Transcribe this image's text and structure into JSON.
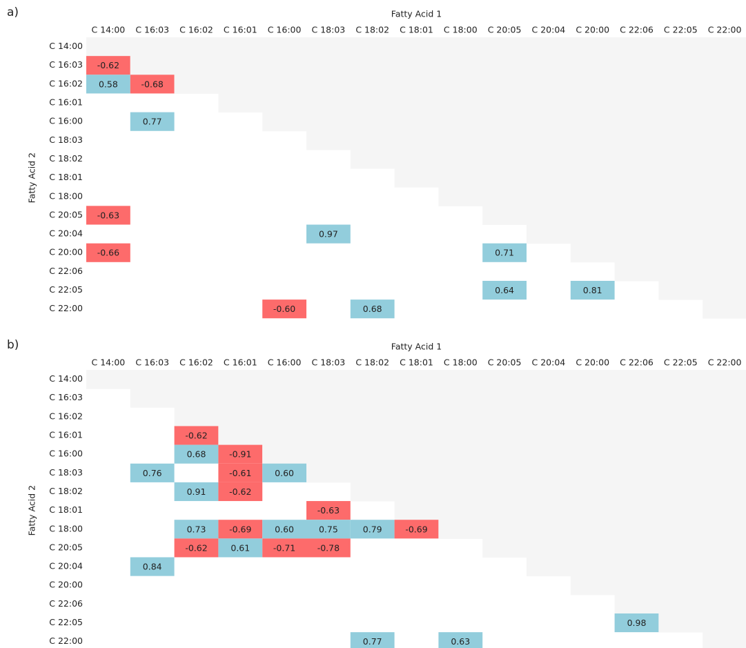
{
  "chart_data": [
    {
      "type": "heatmap",
      "panel_label": "a)",
      "x_label": "Fatty Acid 1",
      "y_label": "Fatty Acid 2",
      "x_categories": [
        "C 14:00",
        "C 16:03",
        "C 16:02",
        "C 16:01",
        "C 16:00",
        "C 18:03",
        "C 18:02",
        "C 18:01",
        "C 18:00",
        "C 20:05",
        "C 20:04",
        "C 20:00",
        "C 22:06",
        "C 22:05",
        "C 22:00"
      ],
      "y_categories": [
        "C 14:00",
        "C 16:03",
        "C 16:02",
        "C 16:01",
        "C 16:00",
        "C 18:03",
        "C 18:02",
        "C 18:01",
        "C 18:00",
        "C 20:05",
        "C 20:04",
        "C 20:00",
        "C 22:06",
        "C 22:05",
        "C 22:00"
      ],
      "color_positive": "#92cddc",
      "color_negative": "#fd6b6b",
      "color_upper": "#f5f5f5",
      "values": [
        [
          null,
          null,
          null,
          null,
          null,
          null,
          null,
          null,
          null,
          null,
          null,
          null,
          null,
          null,
          null
        ],
        [
          -0.62,
          null,
          null,
          null,
          null,
          null,
          null,
          null,
          null,
          null,
          null,
          null,
          null,
          null,
          null
        ],
        [
          0.58,
          -0.68,
          null,
          null,
          null,
          null,
          null,
          null,
          null,
          null,
          null,
          null,
          null,
          null,
          null
        ],
        [
          null,
          null,
          null,
          null,
          null,
          null,
          null,
          null,
          null,
          null,
          null,
          null,
          null,
          null,
          null
        ],
        [
          null,
          0.77,
          null,
          null,
          null,
          null,
          null,
          null,
          null,
          null,
          null,
          null,
          null,
          null,
          null
        ],
        [
          null,
          null,
          null,
          null,
          null,
          null,
          null,
          null,
          null,
          null,
          null,
          null,
          null,
          null,
          null
        ],
        [
          null,
          null,
          null,
          null,
          null,
          null,
          null,
          null,
          null,
          null,
          null,
          null,
          null,
          null,
          null
        ],
        [
          null,
          null,
          null,
          null,
          null,
          null,
          null,
          null,
          null,
          null,
          null,
          null,
          null,
          null,
          null
        ],
        [
          null,
          null,
          null,
          null,
          null,
          null,
          null,
          null,
          null,
          null,
          null,
          null,
          null,
          null,
          null
        ],
        [
          -0.63,
          null,
          null,
          null,
          null,
          null,
          null,
          null,
          null,
          null,
          null,
          null,
          null,
          null,
          null
        ],
        [
          null,
          null,
          null,
          null,
          null,
          0.97,
          null,
          null,
          null,
          null,
          null,
          null,
          null,
          null,
          null
        ],
        [
          -0.66,
          null,
          null,
          null,
          null,
          null,
          null,
          null,
          null,
          0.71,
          null,
          null,
          null,
          null,
          null
        ],
        [
          null,
          null,
          null,
          null,
          null,
          null,
          null,
          null,
          null,
          null,
          null,
          null,
          null,
          null,
          null
        ],
        [
          null,
          null,
          null,
          null,
          null,
          null,
          null,
          null,
          null,
          0.64,
          null,
          0.81,
          null,
          null,
          null
        ],
        [
          null,
          null,
          null,
          null,
          -0.6,
          null,
          0.68,
          null,
          null,
          null,
          null,
          null,
          null,
          null,
          null
        ]
      ],
      "value_labels": [
        [
          null,
          null,
          null,
          null,
          null,
          null,
          null,
          null,
          null,
          null,
          null,
          null,
          null,
          null,
          null
        ],
        [
          "-0.62",
          null,
          null,
          null,
          null,
          null,
          null,
          null,
          null,
          null,
          null,
          null,
          null,
          null,
          null
        ],
        [
          "0.58",
          "-0.68",
          null,
          null,
          null,
          null,
          null,
          null,
          null,
          null,
          null,
          null,
          null,
          null,
          null
        ],
        [
          null,
          null,
          null,
          null,
          null,
          null,
          null,
          null,
          null,
          null,
          null,
          null,
          null,
          null,
          null
        ],
        [
          null,
          "0.77",
          null,
          null,
          null,
          null,
          null,
          null,
          null,
          null,
          null,
          null,
          null,
          null,
          null
        ],
        [
          null,
          null,
          null,
          null,
          null,
          null,
          null,
          null,
          null,
          null,
          null,
          null,
          null,
          null,
          null
        ],
        [
          null,
          null,
          null,
          null,
          null,
          null,
          null,
          null,
          null,
          null,
          null,
          null,
          null,
          null,
          null
        ],
        [
          null,
          null,
          null,
          null,
          null,
          null,
          null,
          null,
          null,
          null,
          null,
          null,
          null,
          null,
          null
        ],
        [
          null,
          null,
          null,
          null,
          null,
          null,
          null,
          null,
          null,
          null,
          null,
          null,
          null,
          null,
          null
        ],
        [
          "-0.63",
          null,
          null,
          null,
          null,
          null,
          null,
          null,
          null,
          null,
          null,
          null,
          null,
          null,
          null
        ],
        [
          null,
          null,
          null,
          null,
          null,
          "0.97",
          null,
          null,
          null,
          null,
          null,
          null,
          null,
          null,
          null
        ],
        [
          "-0.66",
          null,
          null,
          null,
          null,
          null,
          null,
          null,
          null,
          "0.71",
          null,
          null,
          null,
          null,
          null
        ],
        [
          null,
          null,
          null,
          null,
          null,
          null,
          null,
          null,
          null,
          null,
          null,
          null,
          null,
          null,
          null
        ],
        [
          null,
          null,
          null,
          null,
          null,
          null,
          null,
          null,
          null,
          "0.64",
          null,
          "0.81",
          null,
          null,
          null
        ],
        [
          null,
          null,
          null,
          null,
          "-0.60",
          null,
          "0.68",
          null,
          null,
          null,
          null,
          null,
          null,
          null,
          null
        ]
      ]
    },
    {
      "type": "heatmap",
      "panel_label": "b)",
      "x_label": "Fatty Acid 1",
      "y_label": "Fatty Acid 2",
      "x_categories": [
        "C 14:00",
        "C 16:03",
        "C 16:02",
        "C 16:01",
        "C 16:00",
        "C 18:03",
        "C 18:02",
        "C 18:01",
        "C 18:00",
        "C 20:05",
        "C 20:04",
        "C 20:00",
        "C 22:06",
        "C 22:05",
        "C 22:00"
      ],
      "y_categories": [
        "C 14:00",
        "C 16:03",
        "C 16:02",
        "C 16:01",
        "C 16:00",
        "C 18:03",
        "C 18:02",
        "C 18:01",
        "C 18:00",
        "C 20:05",
        "C 20:04",
        "C 20:00",
        "C 22:06",
        "C 22:05",
        "C 22:00"
      ],
      "color_positive": "#92cddc",
      "color_negative": "#fd6b6b",
      "color_upper": "#f5f5f5",
      "values": [
        [
          null,
          null,
          null,
          null,
          null,
          null,
          null,
          null,
          null,
          null,
          null,
          null,
          null,
          null,
          null
        ],
        [
          null,
          null,
          null,
          null,
          null,
          null,
          null,
          null,
          null,
          null,
          null,
          null,
          null,
          null,
          null
        ],
        [
          null,
          null,
          null,
          null,
          null,
          null,
          null,
          null,
          null,
          null,
          null,
          null,
          null,
          null,
          null
        ],
        [
          null,
          null,
          -0.62,
          null,
          null,
          null,
          null,
          null,
          null,
          null,
          null,
          null,
          null,
          null,
          null
        ],
        [
          null,
          null,
          0.68,
          -0.91,
          null,
          null,
          null,
          null,
          null,
          null,
          null,
          null,
          null,
          null,
          null
        ],
        [
          null,
          0.76,
          null,
          -0.61,
          0.6,
          null,
          null,
          null,
          null,
          null,
          null,
          null,
          null,
          null,
          null
        ],
        [
          null,
          null,
          0.91,
          -0.62,
          null,
          null,
          null,
          null,
          null,
          null,
          null,
          null,
          null,
          null,
          null
        ],
        [
          null,
          null,
          null,
          null,
          null,
          -0.63,
          null,
          null,
          null,
          null,
          null,
          null,
          null,
          null,
          null
        ],
        [
          null,
          null,
          0.73,
          -0.69,
          0.6,
          0.75,
          0.79,
          -0.69,
          null,
          null,
          null,
          null,
          null,
          null,
          null
        ],
        [
          null,
          null,
          -0.62,
          0.61,
          -0.71,
          -0.78,
          null,
          null,
          null,
          null,
          null,
          null,
          null,
          null,
          null
        ],
        [
          null,
          0.84,
          null,
          null,
          null,
          null,
          null,
          null,
          null,
          null,
          null,
          null,
          null,
          null,
          null
        ],
        [
          null,
          null,
          null,
          null,
          null,
          null,
          null,
          null,
          null,
          null,
          null,
          null,
          null,
          null,
          null
        ],
        [
          null,
          null,
          null,
          null,
          null,
          null,
          null,
          null,
          null,
          null,
          null,
          null,
          null,
          null,
          null
        ],
        [
          null,
          null,
          null,
          null,
          null,
          null,
          null,
          null,
          null,
          null,
          null,
          null,
          0.98,
          null,
          null
        ],
        [
          null,
          null,
          null,
          null,
          null,
          null,
          0.77,
          null,
          0.63,
          null,
          null,
          null,
          null,
          null,
          null
        ]
      ],
      "value_labels": [
        [
          null,
          null,
          null,
          null,
          null,
          null,
          null,
          null,
          null,
          null,
          null,
          null,
          null,
          null,
          null
        ],
        [
          null,
          null,
          null,
          null,
          null,
          null,
          null,
          null,
          null,
          null,
          null,
          null,
          null,
          null,
          null
        ],
        [
          null,
          null,
          null,
          null,
          null,
          null,
          null,
          null,
          null,
          null,
          null,
          null,
          null,
          null,
          null
        ],
        [
          null,
          null,
          "-0.62",
          null,
          null,
          null,
          null,
          null,
          null,
          null,
          null,
          null,
          null,
          null,
          null
        ],
        [
          null,
          null,
          "0.68",
          "-0.91",
          null,
          null,
          null,
          null,
          null,
          null,
          null,
          null,
          null,
          null,
          null
        ],
        [
          null,
          "0.76",
          null,
          "-0.61",
          "0.60",
          null,
          null,
          null,
          null,
          null,
          null,
          null,
          null,
          null,
          null
        ],
        [
          null,
          null,
          "0.91",
          "-0.62",
          null,
          null,
          null,
          null,
          null,
          null,
          null,
          null,
          null,
          null,
          null
        ],
        [
          null,
          null,
          null,
          null,
          null,
          "-0.63",
          null,
          null,
          null,
          null,
          null,
          null,
          null,
          null,
          null
        ],
        [
          null,
          null,
          "0.73",
          "-0.69",
          "0.60",
          "0.75",
          "0.79",
          "-0.69",
          null,
          null,
          null,
          null,
          null,
          null,
          null
        ],
        [
          null,
          null,
          "-0.62",
          "0.61",
          "-0.71",
          "-0.78",
          null,
          null,
          null,
          null,
          null,
          null,
          null,
          null,
          null
        ],
        [
          null,
          "0.84",
          null,
          null,
          null,
          null,
          null,
          null,
          null,
          null,
          null,
          null,
          null,
          null,
          null
        ],
        [
          null,
          null,
          null,
          null,
          null,
          null,
          null,
          null,
          null,
          null,
          null,
          null,
          null,
          null,
          null
        ],
        [
          null,
          null,
          null,
          null,
          null,
          null,
          null,
          null,
          null,
          null,
          null,
          null,
          null,
          null,
          null
        ],
        [
          null,
          null,
          null,
          null,
          null,
          null,
          null,
          null,
          null,
          null,
          null,
          null,
          "0.98",
          null,
          null
        ],
        [
          null,
          null,
          null,
          null,
          null,
          null,
          "0.77",
          null,
          "0.63",
          null,
          null,
          null,
          null,
          null,
          null
        ]
      ]
    }
  ]
}
